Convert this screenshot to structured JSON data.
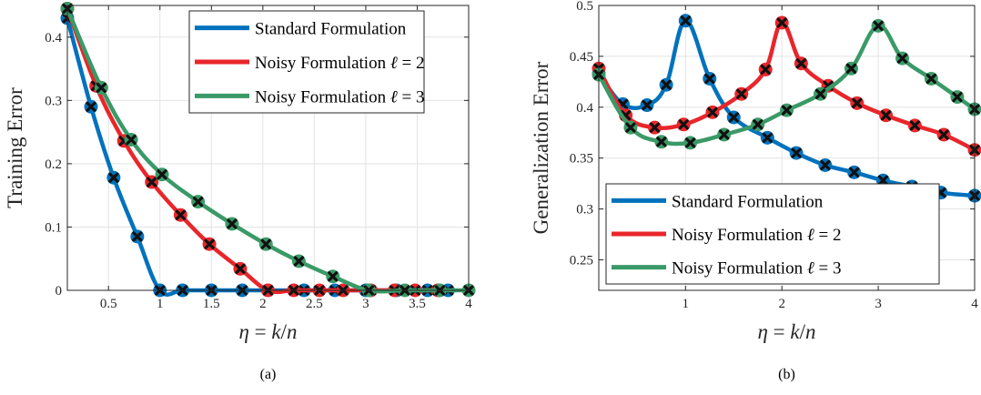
{
  "colors": {
    "standard": "#0072BD",
    "noisy2": "#E8262B",
    "noisy3": "#3A9A67",
    "marker_x": "#111111"
  },
  "xlabel": "η = k/n",
  "panels": [
    {
      "caption": "(a)",
      "ylabel": "Training Error"
    },
    {
      "caption": "(b)",
      "ylabel": "Generalization Error"
    }
  ],
  "legend": [
    {
      "key": "standard",
      "label": "Standard Formulation"
    },
    {
      "key": "noisy2",
      "label": "Noisy Formulation ℓ = 2"
    },
    {
      "key": "noisy3",
      "label": "Noisy Formulation ℓ = 3"
    }
  ],
  "chart_data": [
    {
      "type": "line",
      "title": "",
      "xlabel": "η = k/n",
      "ylabel": "Training Error",
      "xlim": [
        0.1,
        4
      ],
      "ylim": [
        0,
        0.45
      ],
      "xticks": [
        0.5,
        1,
        1.5,
        2,
        2.5,
        3,
        3.5,
        4
      ],
      "xtick_labels": [
        "0.5",
        "1",
        "1.5",
        "2",
        "2.5",
        "3",
        "3.5",
        "4"
      ],
      "yticks": [
        0,
        0.1,
        0.2,
        0.3,
        0.4
      ],
      "ytick_labels": [
        "0",
        "0.1",
        "0.2",
        "0.3",
        "0.4"
      ],
      "grid": true,
      "legend_position": "top-right",
      "series": [
        {
          "name": "Standard Formulation",
          "key": "standard",
          "x": [
            0.1,
            0.33,
            0.55,
            0.78,
            1.0,
            1.22,
            1.5,
            1.8,
            2.05,
            2.4,
            2.7,
            3.0,
            3.3,
            3.6,
            3.8
          ],
          "y": [
            0.43,
            0.29,
            0.178,
            0.085,
            0.0,
            0.0,
            0.0,
            0.0,
            0.0,
            0.0,
            0.0,
            0.0,
            0.0,
            0.0,
            0.0
          ]
        },
        {
          "name": "Noisy Formulation ℓ = 2",
          "key": "noisy2",
          "x": [
            0.1,
            0.38,
            0.65,
            0.92,
            1.2,
            1.48,
            1.78,
            2.05,
            2.3,
            2.55,
            2.78,
            3.05,
            3.28,
            3.48,
            3.7
          ],
          "y": [
            0.445,
            0.323,
            0.236,
            0.171,
            0.119,
            0.073,
            0.034,
            0.0,
            0.0,
            0.0,
            0.0,
            0.0,
            0.0,
            0.0,
            0.0
          ]
        },
        {
          "name": "Noisy Formulation ℓ = 3",
          "key": "noisy3",
          "x": [
            0.1,
            0.43,
            0.72,
            1.02,
            1.37,
            1.7,
            2.03,
            2.35,
            2.68,
            3.03,
            3.38,
            3.72,
            4.0
          ],
          "y": [
            0.445,
            0.32,
            0.238,
            0.183,
            0.14,
            0.105,
            0.073,
            0.046,
            0.022,
            0.0,
            0.0,
            0.0,
            0.0
          ]
        }
      ]
    },
    {
      "type": "line",
      "title": "",
      "xlabel": "η = k/n",
      "ylabel": "Generalization Error",
      "xlim": [
        0.1,
        4
      ],
      "ylim": [
        0.22,
        0.5
      ],
      "xticks": [
        1,
        2,
        3,
        4
      ],
      "xtick_labels": [
        "1",
        "2",
        "3",
        "4"
      ],
      "yticks": [
        0.25,
        0.3,
        0.35,
        0.4,
        0.45,
        0.5
      ],
      "ytick_labels": [
        "0.25",
        "0.3",
        "0.35",
        "0.4",
        "0.45",
        "0.5"
      ],
      "grid": true,
      "legend_position": "bottom-right",
      "series": [
        {
          "name": "Standard Formulation",
          "key": "standard",
          "x": [
            0.1,
            0.35,
            0.6,
            0.8,
            1.0,
            1.25,
            1.5,
            1.85,
            2.15,
            2.45,
            2.75,
            3.05,
            3.35,
            3.65,
            4.0
          ],
          "y": [
            0.433,
            0.403,
            0.402,
            0.422,
            0.485,
            0.428,
            0.39,
            0.37,
            0.355,
            0.343,
            0.336,
            0.328,
            0.322,
            0.316,
            0.313
          ]
        },
        {
          "name": "Noisy Formulation ℓ = 2",
          "key": "noisy2",
          "x": [
            0.1,
            0.38,
            0.68,
            0.98,
            1.28,
            1.58,
            1.83,
            2.0,
            2.2,
            2.48,
            2.78,
            3.08,
            3.38,
            3.68,
            4.0
          ],
          "y": [
            0.438,
            0.392,
            0.38,
            0.383,
            0.395,
            0.413,
            0.437,
            0.483,
            0.443,
            0.421,
            0.404,
            0.392,
            0.382,
            0.373,
            0.358
          ]
        },
        {
          "name": "Noisy Formulation ℓ = 3",
          "key": "noisy3",
          "x": [
            0.1,
            0.43,
            0.75,
            1.05,
            1.4,
            1.75,
            2.05,
            2.4,
            2.72,
            3.0,
            3.25,
            3.55,
            3.82,
            4.0
          ],
          "y": [
            0.432,
            0.38,
            0.366,
            0.365,
            0.373,
            0.383,
            0.397,
            0.413,
            0.438,
            0.48,
            0.448,
            0.428,
            0.41,
            0.398
          ]
        }
      ]
    }
  ]
}
